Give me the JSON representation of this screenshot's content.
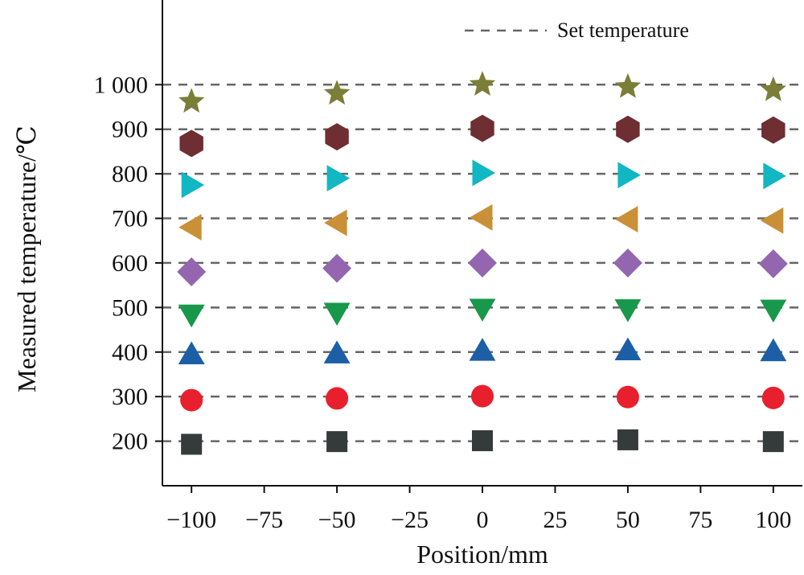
{
  "chart_data": {
    "type": "scatter",
    "xlabel": "Position/mm",
    "ylabel": "Measured temperature/℃",
    "x_ticks": [
      -100,
      -75,
      -50,
      -25,
      0,
      25,
      50,
      75,
      100
    ],
    "x_tick_labels": [
      "−100",
      "−75",
      "−50",
      "−25",
      "0",
      "25",
      "50",
      "75",
      "100"
    ],
    "y_ticks": [
      200,
      300,
      400,
      500,
      600,
      700,
      800,
      900,
      1000
    ],
    "y_tick_labels": [
      "200",
      "300",
      "400",
      "500",
      "600",
      "700",
      "800",
      "900",
      "1 000"
    ],
    "xlim": [
      -110,
      110
    ],
    "ylim": [
      100,
      1190
    ],
    "set_temperatures": [
      200,
      300,
      400,
      500,
      600,
      700,
      800,
      900,
      1000
    ],
    "legend": {
      "label": "Set temperature",
      "placement": "top-right"
    },
    "x": [
      -100,
      -50,
      0,
      50,
      100
    ],
    "series": [
      {
        "set": 200,
        "marker": "square",
        "color": "#353a3a",
        "values": [
          193,
          199,
          201,
          203,
          199
        ]
      },
      {
        "set": 300,
        "marker": "circle",
        "color": "#e8202e",
        "values": [
          292,
          296,
          301,
          299,
          297
        ]
      },
      {
        "set": 400,
        "marker": "triangle-up",
        "color": "#1d5fa6",
        "values": [
          395,
          397,
          403,
          404,
          402
        ]
      },
      {
        "set": 500,
        "marker": "triangle-down",
        "color": "#18984a",
        "values": [
          484,
          488,
          497,
          496,
          495
        ]
      },
      {
        "set": 600,
        "marker": "diamond",
        "color": "#9466b0",
        "values": [
          580,
          588,
          600,
          600,
          598
        ]
      },
      {
        "set": 700,
        "marker": "triangle-left",
        "color": "#c99037",
        "values": [
          680,
          690,
          702,
          698,
          695
        ]
      },
      {
        "set": 800,
        "marker": "triangle-right",
        "color": "#11b7c2",
        "values": [
          775,
          790,
          802,
          797,
          795
        ]
      },
      {
        "set": 900,
        "marker": "hexagon",
        "color": "#6e2e32",
        "values": [
          868,
          883,
          902,
          900,
          898
        ]
      },
      {
        "set": 1000,
        "marker": "star",
        "color": "#7a7e37",
        "values": [
          962,
          980,
          1000,
          995,
          988
        ]
      }
    ]
  }
}
